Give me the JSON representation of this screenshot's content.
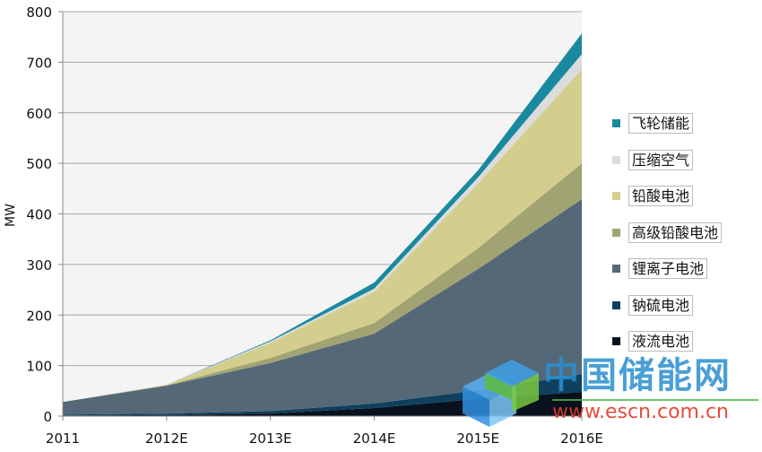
{
  "chart_data": {
    "type": "area",
    "stacked": true,
    "title": "",
    "xlabel": "",
    "ylabel": "MW",
    "ylim": [
      0,
      800
    ],
    "yticks": [
      0,
      100,
      200,
      300,
      400,
      500,
      600,
      700,
      800
    ],
    "grid": true,
    "legend_position": "right",
    "categories": [
      "2011",
      "2012E",
      "2013E",
      "2014E",
      "2015E",
      "2016E"
    ],
    "series": [
      {
        "name": "液流电池",
        "color": "#08111d",
        "values": [
          1,
          2,
          5,
          16,
          34,
          48
        ]
      },
      {
        "name": "钠硫电池",
        "color": "#0f405e",
        "values": [
          2,
          3,
          5,
          9,
          17,
          35
        ]
      },
      {
        "name": "锂离子电池",
        "color": "#546878",
        "values": [
          25,
          55,
          95,
          138,
          240,
          346
        ]
      },
      {
        "name": "高级铅酸电池",
        "color": "#a1a373",
        "values": [
          0,
          1,
          10,
          21,
          41,
          71
        ]
      },
      {
        "name": "铅酸电池",
        "color": "#d3ce8d",
        "values": [
          0,
          1,
          30,
          62,
          128,
          186
        ]
      },
      {
        "name": "压缩空气",
        "color": "#dcdcdc",
        "values": [
          0,
          0,
          3,
          6,
          12,
          30
        ]
      },
      {
        "name": "飞轮储能",
        "color": "#19899f",
        "values": [
          0,
          0,
          2,
          12,
          14,
          41
        ]
      }
    ]
  },
  "watermark": {
    "name": "中国储能网",
    "url": "www.escn.com.cn"
  }
}
